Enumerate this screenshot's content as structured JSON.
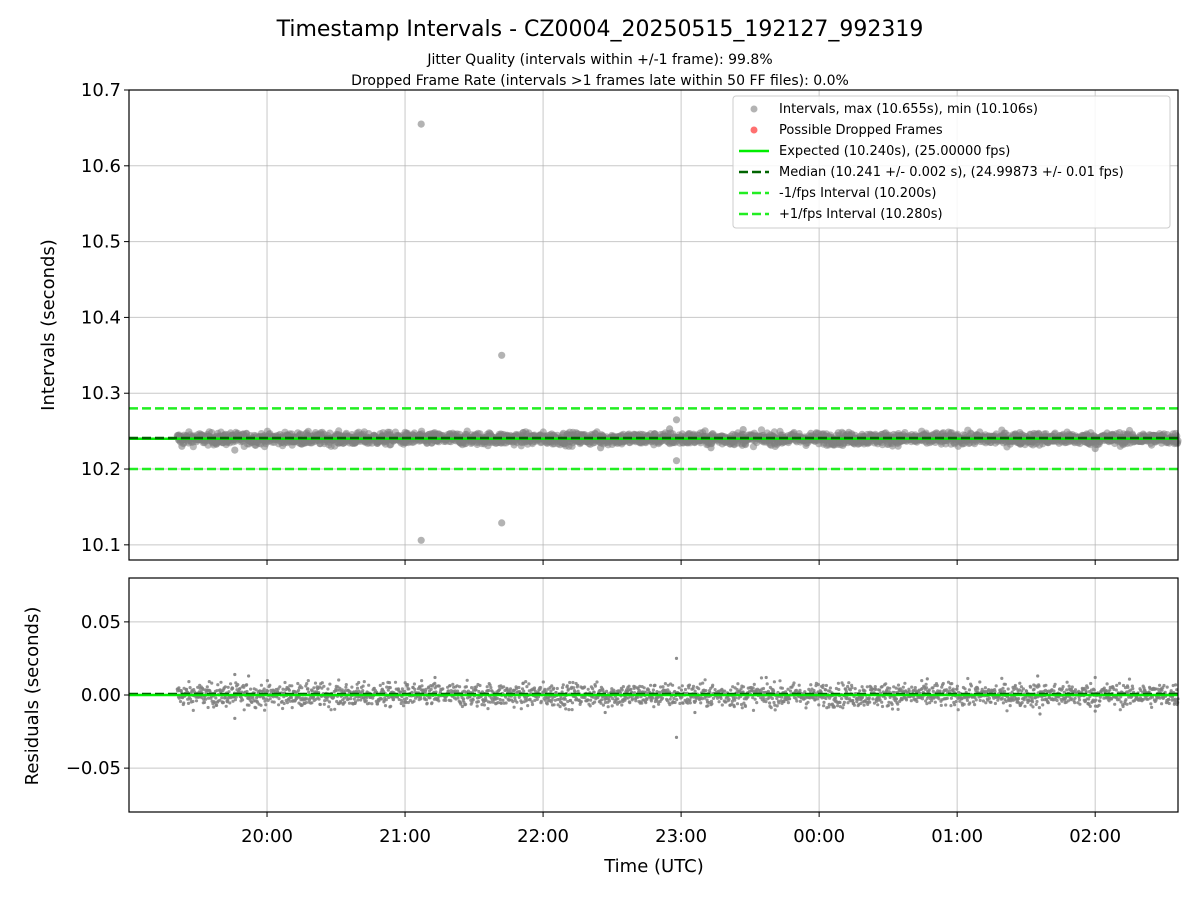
{
  "header": {
    "title": "Timestamp Intervals - CZ0004_20250515_192127_992319",
    "subtitle_line1": "Jitter Quality (intervals within +/-1 frame): 99.8%",
    "subtitle_line2": "Dropped Frame Rate (intervals >1 frames late within 50 FF files): 0.0%"
  },
  "colors": {
    "points": "#808080",
    "expected": "#00ee00",
    "median": "#006400",
    "bound": "#22ee22",
    "dropped": "#ff6060",
    "grid": "#b0b0b0"
  },
  "chart_data": [
    {
      "type": "scatter",
      "ylabel": "Intervals (seconds)",
      "xlabel": "",
      "x_axis": "time",
      "xlim": [
        "19:00",
        "02:36"
      ],
      "ylim": [
        10.08,
        10.7
      ],
      "yticks": [
        10.1,
        10.2,
        10.3,
        10.4,
        10.5,
        10.6,
        10.7
      ],
      "ytick_labels": [
        "10.1",
        "10.2",
        "10.3",
        "10.4",
        "10.5",
        "10.6",
        "10.7"
      ],
      "grid": true,
      "legend_position": "top-right",
      "legend": [
        "Intervals, max (10.655s), min (10.106s)",
        "Possible Dropped Frames",
        "Expected (10.240s), (25.00000 fps)",
        "Median (10.241 +/- 0.002 s), (24.99873 +/- 0.01 fps)",
        "-1/fps Interval (10.200s)",
        "+1/fps Interval (10.280s)"
      ],
      "reference_lines": {
        "expected": 10.24,
        "median": 10.241,
        "minus_one_frame": 10.2,
        "plus_one_frame": 10.28
      },
      "data_start": "19:21",
      "data_end": "02:36",
      "typical_interval": 10.24,
      "typical_spread": 0.004,
      "outliers": [
        {
          "x": "21:07",
          "y": 10.655
        },
        {
          "x": "21:07",
          "y": 10.106
        },
        {
          "x": "21:42",
          "y": 10.35
        },
        {
          "x": "21:42",
          "y": 10.129
        },
        {
          "x": "22:58",
          "y": 10.265
        },
        {
          "x": "22:58",
          "y": 10.211
        },
        {
          "x": "22:55",
          "y": 10.253
        },
        {
          "x": "22:25",
          "y": 10.228
        },
        {
          "x": "19:46",
          "y": 10.225
        },
        {
          "x": "19:23",
          "y": 10.23
        },
        {
          "x": "23:13",
          "y": 10.228
        },
        {
          "x": "23:27",
          "y": 10.252
        },
        {
          "x": "02:00",
          "y": 10.227
        }
      ]
    },
    {
      "type": "scatter",
      "ylabel": "Residuals (seconds)",
      "xlabel": "Time (UTC)",
      "x_axis": "time",
      "xlim": [
        "19:00",
        "02:36"
      ],
      "ylim": [
        -0.08,
        0.08
      ],
      "yticks": [
        -0.05,
        0.0,
        0.05
      ],
      "ytick_labels": [
        "−0.05",
        "0.00",
        "0.05"
      ],
      "xticks": [
        "20:00",
        "21:00",
        "22:00",
        "23:00",
        "00:00",
        "01:00",
        "02:00"
      ],
      "xtick_labels": [
        "20:00",
        "21:00",
        "22:00",
        "23:00",
        "00:00",
        "01:00",
        "02:00"
      ],
      "grid": true,
      "zero_line": 0.0,
      "typical_spread": 0.004,
      "outliers": [
        {
          "x": "22:58",
          "y": 0.025
        },
        {
          "x": "22:58",
          "y": -0.029
        },
        {
          "x": "19:46",
          "y": -0.016
        },
        {
          "x": "19:46",
          "y": 0.014
        },
        {
          "x": "19:52",
          "y": 0.013
        },
        {
          "x": "21:13",
          "y": 0.012
        },
        {
          "x": "00:47",
          "y": 0.011
        },
        {
          "x": "01:35",
          "y": 0.013
        },
        {
          "x": "02:00",
          "y": 0.012
        },
        {
          "x": "23:37",
          "y": 0.012
        },
        {
          "x": "22:27",
          "y": -0.012
        },
        {
          "x": "23:06",
          "y": -0.012
        },
        {
          "x": "01:36",
          "y": -0.013
        },
        {
          "x": "02:00",
          "y": -0.011
        }
      ]
    }
  ]
}
